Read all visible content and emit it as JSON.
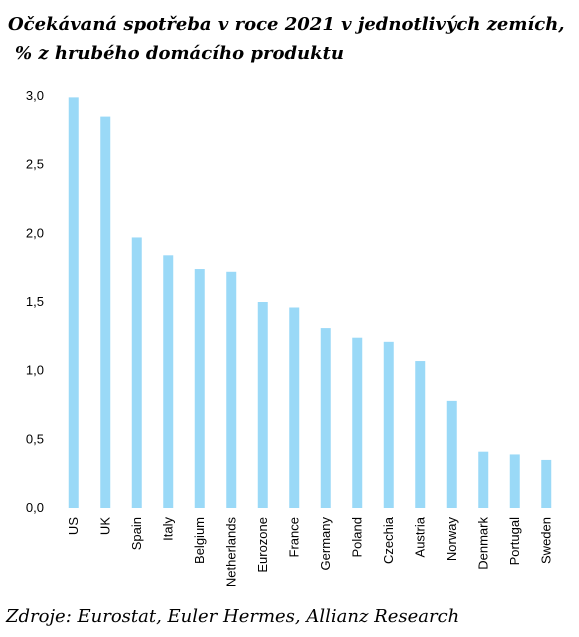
{
  "chart_data": {
    "type": "bar",
    "title_line1": "Očekávaná spotřeba v roce 2021 v jednotlivých zemích,",
    "title_line2": "% z hrubého domácího produktu",
    "xlabel": "",
    "ylabel": "",
    "categories": [
      "US",
      "UK",
      "Spain",
      "Italy",
      "Belgium",
      "Netherlands",
      "Eurozone",
      "France",
      "Germany",
      "Poland",
      "Czechia",
      "Austria",
      "Norway",
      "Denmark",
      "Portugal",
      "Sweden"
    ],
    "values": [
      2.99,
      2.85,
      1.97,
      1.84,
      1.74,
      1.72,
      1.5,
      1.46,
      1.31,
      1.24,
      1.21,
      1.07,
      0.78,
      0.41,
      0.39,
      0.35
    ],
    "ylim": [
      0,
      3.0
    ],
    "yticks": [
      "0,0",
      "0,5",
      "1,0",
      "1,5",
      "2,0",
      "2,5",
      "3,0"
    ],
    "bar_color": "#9ad9f7",
    "grid": false,
    "legend": "none"
  },
  "source": "Zdroje: Eurostat, Euler Hermes, Allianz Research"
}
